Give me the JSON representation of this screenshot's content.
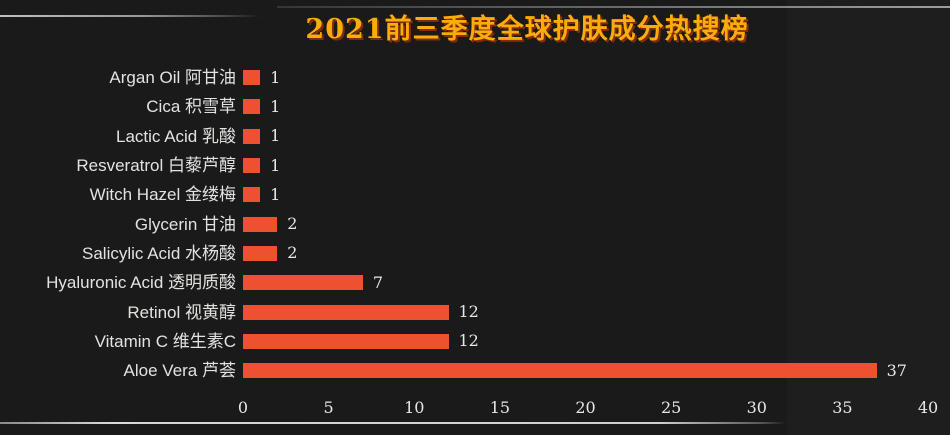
{
  "chart": {
    "colors": {
      "background": "#1A1A1A",
      "bar": "#ED5130",
      "title": "#F9AD08",
      "title_shadow": "rgba(169,47,0,0.75)",
      "label": "#E4E2DF",
      "value": "#E9E7E4"
    }
  },
  "chart_data": {
    "type": "bar",
    "orientation": "horizontal",
    "title": "2021前三季度全球护肤成分热搜榜",
    "categories": [
      "Argan Oil 阿甘油",
      "Cica 积雪草",
      "Lactic Acid 乳酸",
      "Resveratrol 白藜芦醇",
      "Witch Hazel 金缕梅",
      "Glycerin 甘油",
      "Salicylic Acid 水杨酸",
      "Hyaluronic Acid 透明质酸",
      "Retinol 视黄醇",
      "Vitamin C 维生素C",
      "Aloe Vera 芦荟"
    ],
    "values": [
      1,
      1,
      1,
      1,
      1,
      2,
      2,
      7,
      12,
      12,
      37
    ],
    "value_labels": [
      "1",
      "1",
      "1",
      "1",
      "1",
      "2",
      "2",
      "7",
      "12",
      "12",
      "37"
    ],
    "xlabel": "",
    "ylabel": "",
    "xlim": [
      0,
      40
    ],
    "xticks": [
      0,
      5,
      10,
      15,
      20,
      25,
      30,
      35,
      40
    ],
    "grid": false,
    "legend": null
  }
}
